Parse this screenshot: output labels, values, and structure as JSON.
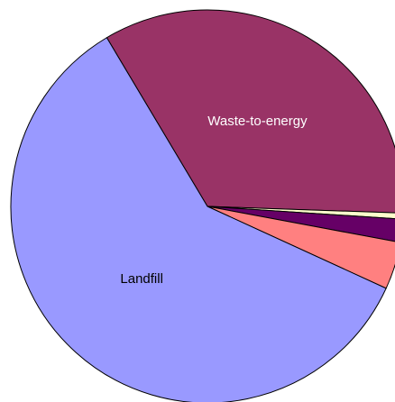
{
  "chart_data": {
    "type": "pie",
    "categories": [
      "Waste-to-energy",
      null,
      null,
      null,
      "Landfill"
    ],
    "values": [
      34.1,
      0.5,
      1.9,
      3.9,
      59.6
    ],
    "colors": [
      "#993366",
      "#ffffcc",
      "#660066",
      "#ff8080",
      "#9999ff"
    ],
    "label_colors": [
      "#ffffff",
      "#000000",
      "#000000",
      "#000000",
      "#000000"
    ]
  }
}
